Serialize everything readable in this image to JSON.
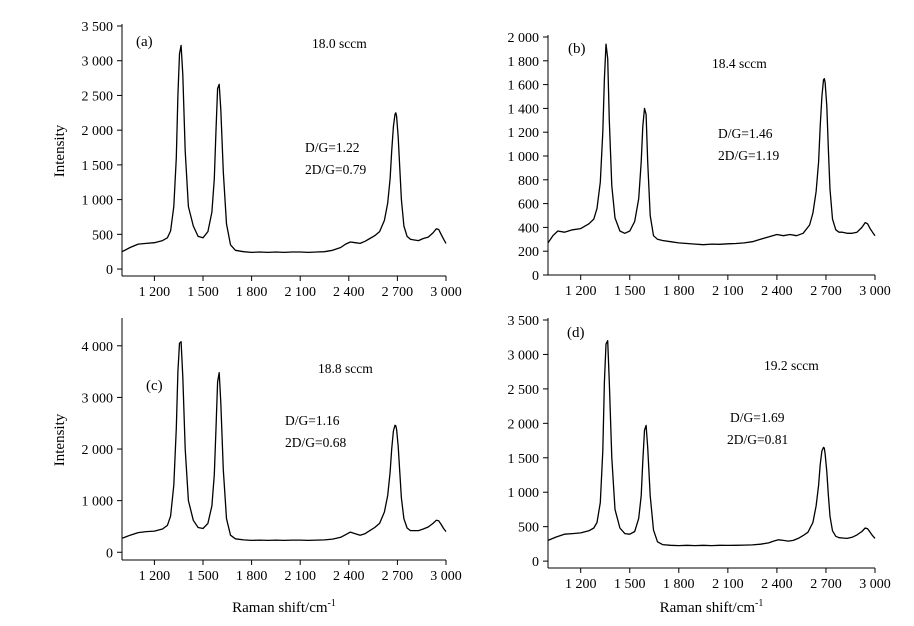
{
  "chart_data": [
    {
      "type": "line",
      "panel_label": "(a)",
      "flow_label": "18.0 sccm",
      "ratio_dg": "D/G=1.22",
      "ratio_2dg": "2D/G=0.79",
      "ylabel": "Intensity",
      "xlabel": "",
      "xlim": [
        1000,
        3000
      ],
      "ylim": [
        -100,
        3500
      ],
      "xticks": [
        1200,
        1500,
        1800,
        2100,
        2400,
        2700,
        3000
      ],
      "xtick_labels": [
        "1 200",
        "1 500",
        "1 800",
        "2 100",
        "2 400",
        "2 700",
        "3 000"
      ],
      "yticks": [
        0,
        500,
        1000,
        1500,
        2000,
        2500,
        3000,
        3500
      ],
      "ytick_labels": [
        "0",
        "500",
        "1 000",
        "1 500",
        "2 000",
        "2 500",
        "3 000",
        "3 500"
      ],
      "series": [
        {
          "x": [
            1000,
            1050,
            1100,
            1150,
            1200,
            1250,
            1280,
            1300,
            1320,
            1335,
            1345,
            1355,
            1365,
            1375,
            1390,
            1410,
            1440,
            1470,
            1500,
            1530,
            1555,
            1570,
            1580,
            1590,
            1600,
            1610,
            1625,
            1645,
            1670,
            1700,
            1750,
            1800,
            1850,
            1900,
            1950,
            2000,
            2050,
            2100,
            2150,
            2200,
            2250,
            2300,
            2350,
            2380,
            2410,
            2440,
            2470,
            2500,
            2530,
            2560,
            2590,
            2620,
            2640,
            2655,
            2665,
            2675,
            2685,
            2690,
            2695,
            2705,
            2715,
            2725,
            2740,
            2760,
            2780,
            2800,
            2830,
            2860,
            2890,
            2920,
            2940,
            2955,
            2970,
            2985,
            3000
          ],
          "y": [
            250,
            310,
            360,
            370,
            380,
            410,
            450,
            550,
            900,
            1600,
            2500,
            3100,
            3220,
            2800,
            1700,
            900,
            620,
            470,
            450,
            540,
            820,
            1300,
            2000,
            2600,
            2660,
            2300,
            1400,
            650,
            350,
            270,
            250,
            240,
            245,
            240,
            245,
            240,
            245,
            245,
            240,
            245,
            250,
            270,
            310,
            360,
            390,
            380,
            370,
            400,
            440,
            480,
            540,
            700,
            950,
            1300,
            1700,
            2050,
            2230,
            2250,
            2200,
            1900,
            1450,
            1000,
            620,
            470,
            430,
            420,
            410,
            440,
            460,
            520,
            580,
            570,
            500,
            430,
            370
          ]
        }
      ]
    },
    {
      "type": "line",
      "panel_label": "(b)",
      "flow_label": "18.4 sccm",
      "ratio_dg": "D/G=1.46",
      "ratio_2dg": "2D/G=1.19",
      "ylabel": "",
      "xlabel": "",
      "xlim": [
        1000,
        3000
      ],
      "ylim": [
        0,
        2000
      ],
      "xticks": [
        1200,
        1500,
        1800,
        2100,
        2400,
        2700,
        3000
      ],
      "xtick_labels": [
        "1 200",
        "1 500",
        "1 800",
        "2 100",
        "2 400",
        "2 700",
        "3 000"
      ],
      "yticks": [
        0,
        200,
        400,
        600,
        800,
        1000,
        1200,
        1400,
        1600,
        1800,
        2000
      ],
      "ytick_labels": [
        "0",
        "200",
        "400",
        "600",
        "800",
        "1 000",
        "1 200",
        "1 400",
        "1 600",
        "1 800",
        "2 000"
      ],
      "series": [
        {
          "x": [
            1000,
            1030,
            1060,
            1100,
            1150,
            1200,
            1250,
            1280,
            1300,
            1320,
            1335,
            1345,
            1355,
            1365,
            1375,
            1390,
            1410,
            1440,
            1470,
            1500,
            1530,
            1555,
            1570,
            1580,
            1590,
            1600,
            1610,
            1625,
            1645,
            1670,
            1700,
            1750,
            1800,
            1850,
            1900,
            1950,
            2000,
            2050,
            2100,
            2150,
            2200,
            2250,
            2300,
            2350,
            2400,
            2440,
            2480,
            2520,
            2560,
            2600,
            2620,
            2640,
            2655,
            2665,
            2675,
            2685,
            2690,
            2695,
            2705,
            2715,
            2725,
            2740,
            2760,
            2780,
            2800,
            2830,
            2860,
            2890,
            2920,
            2940,
            2955,
            2970,
            2985,
            3000
          ],
          "y": [
            270,
            330,
            370,
            360,
            380,
            390,
            430,
            470,
            560,
            780,
            1200,
            1650,
            1940,
            1820,
            1300,
            750,
            480,
            370,
            350,
            370,
            450,
            640,
            950,
            1250,
            1400,
            1350,
            950,
            500,
            330,
            300,
            290,
            280,
            270,
            265,
            260,
            255,
            260,
            258,
            262,
            265,
            270,
            280,
            300,
            320,
            340,
            330,
            340,
            330,
            350,
            420,
            520,
            700,
            950,
            1250,
            1500,
            1640,
            1650,
            1620,
            1420,
            1050,
            720,
            470,
            380,
            360,
            360,
            350,
            350,
            360,
            400,
            440,
            430,
            390,
            360,
            330
          ]
        }
      ]
    },
    {
      "type": "line",
      "panel_label": "(c)",
      "flow_label": "18.8 sccm",
      "ratio_dg": "D/G=1.16",
      "ratio_2dg": "2D/G=0.68",
      "ylabel": "Intensity",
      "xlabel": "",
      "xlim": [
        1000,
        3000
      ],
      "ylim": [
        -150,
        4500
      ],
      "xticks": [
        1200,
        1500,
        1800,
        2100,
        2400,
        2700,
        3000
      ],
      "xtick_labels": [
        "1 200",
        "1 500",
        "1 800",
        "2 100",
        "2 400",
        "2 700",
        "3 000"
      ],
      "yticks": [
        0,
        1000,
        2000,
        3000,
        4000
      ],
      "ytick_labels": [
        "0",
        "1 000",
        "2 000",
        "3 000",
        "4 000"
      ],
      "series": [
        {
          "x": [
            1000,
            1050,
            1100,
            1150,
            1200,
            1250,
            1280,
            1300,
            1320,
            1335,
            1345,
            1355,
            1365,
            1375,
            1390,
            1410,
            1440,
            1470,
            1500,
            1530,
            1555,
            1570,
            1580,
            1590,
            1600,
            1610,
            1625,
            1645,
            1670,
            1700,
            1750,
            1800,
            1850,
            1900,
            1950,
            2000,
            2050,
            2100,
            2150,
            2200,
            2250,
            2300,
            2350,
            2380,
            2410,
            2440,
            2470,
            2500,
            2530,
            2560,
            2590,
            2620,
            2640,
            2655,
            2665,
            2675,
            2685,
            2690,
            2695,
            2705,
            2715,
            2725,
            2740,
            2760,
            2780,
            2800,
            2830,
            2860,
            2890,
            2920,
            2940,
            2955,
            2970,
            2985,
            3000
          ],
          "y": [
            270,
            330,
            380,
            400,
            410,
            450,
            520,
            700,
            1300,
            2400,
            3500,
            4050,
            4080,
            3400,
            2000,
            1000,
            620,
            480,
            460,
            560,
            900,
            1500,
            2400,
            3300,
            3480,
            2900,
            1600,
            650,
            330,
            260,
            240,
            230,
            235,
            230,
            235,
            230,
            235,
            235,
            230,
            235,
            240,
            255,
            290,
            340,
            390,
            360,
            330,
            360,
            420,
            480,
            560,
            780,
            1100,
            1550,
            2000,
            2350,
            2460,
            2450,
            2380,
            2050,
            1550,
            1050,
            650,
            470,
            420,
            420,
            420,
            450,
            490,
            560,
            620,
            610,
            540,
            460,
            400
          ]
        }
      ]
    },
    {
      "type": "line",
      "panel_label": "(d)",
      "flow_label": "19.2 sccm",
      "ratio_dg": "D/G=1.69",
      "ratio_2dg": "2D/G=0.81",
      "ylabel": "",
      "xlabel": "Raman shift/cm",
      "xlabel_sup": "-1",
      "xlim": [
        1000,
        3000
      ],
      "ylim": [
        -100,
        3500
      ],
      "xticks": [
        1200,
        1500,
        1800,
        2100,
        2400,
        2700,
        3000
      ],
      "xtick_labels": [
        "1 200",
        "1 500",
        "1 800",
        "2 100",
        "2 400",
        "2 700",
        "3 000"
      ],
      "yticks": [
        0,
        500,
        1000,
        1500,
        2000,
        2500,
        3000,
        3500
      ],
      "ytick_labels": [
        "0",
        "500",
        "1 000",
        "1 500",
        "2 000",
        "2 500",
        "3 000",
        "3 500"
      ],
      "series": [
        {
          "x": [
            1000,
            1050,
            1100,
            1150,
            1200,
            1250,
            1280,
            1300,
            1320,
            1335,
            1345,
            1355,
            1365,
            1375,
            1390,
            1410,
            1440,
            1470,
            1500,
            1530,
            1555,
            1570,
            1580,
            1590,
            1600,
            1610,
            1625,
            1645,
            1670,
            1700,
            1750,
            1800,
            1850,
            1900,
            1950,
            2000,
            2050,
            2100,
            2150,
            2200,
            2250,
            2300,
            2350,
            2380,
            2410,
            2440,
            2470,
            2500,
            2530,
            2560,
            2590,
            2620,
            2640,
            2655,
            2665,
            2675,
            2685,
            2690,
            2695,
            2705,
            2715,
            2725,
            2740,
            2760,
            2780,
            2800,
            2830,
            2860,
            2890,
            2920,
            2940,
            2955,
            2970,
            2985,
            3000
          ],
          "y": [
            300,
            350,
            390,
            400,
            410,
            440,
            480,
            560,
            850,
            1600,
            2600,
            3150,
            3200,
            2600,
            1500,
            750,
            480,
            400,
            390,
            430,
            620,
            950,
            1450,
            1900,
            1970,
            1650,
            950,
            450,
            280,
            240,
            230,
            225,
            230,
            225,
            230,
            225,
            230,
            228,
            230,
            232,
            235,
            245,
            265,
            290,
            310,
            300,
            290,
            300,
            330,
            370,
            420,
            560,
            800,
            1100,
            1400,
            1600,
            1650,
            1640,
            1560,
            1300,
            950,
            650,
            440,
            360,
            340,
            335,
            330,
            345,
            380,
            430,
            480,
            470,
            420,
            370,
            330
          ]
        }
      ]
    }
  ]
}
